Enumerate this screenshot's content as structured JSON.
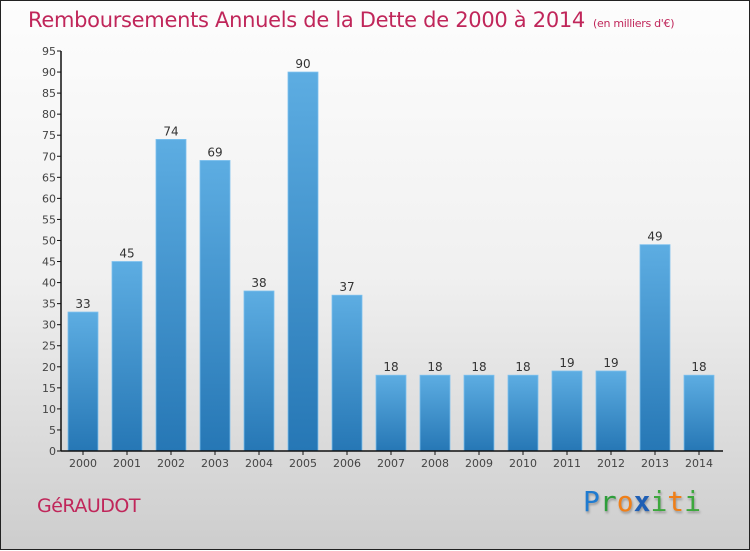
{
  "header": {
    "title": "Remboursements Annuels de la Dette de 2000 à 2014",
    "subtitle": "(en milliers d'€)"
  },
  "footer": {
    "commune": "GéRAUDOT",
    "logo": "Proxiti"
  },
  "colors": {
    "title": "#c0265a",
    "bar_top": "#5dade2",
    "bar_bottom": "#2677b5",
    "logo_p": "#1f7bd0",
    "logo_r": "#2e9e3a",
    "logo_o": "#f07f18",
    "logo_x": "#1f5fb5",
    "logo_i": "#3da83d",
    "logo_t": "#f07f18"
  },
  "chart_data": {
    "type": "bar",
    "title": "Remboursements Annuels de la Dette de 2000 à 2014",
    "xlabel": "",
    "ylabel": "",
    "categories": [
      "2000",
      "2001",
      "2002",
      "2003",
      "2004",
      "2005",
      "2006",
      "2007",
      "2008",
      "2009",
      "2010",
      "2011",
      "2012",
      "2013",
      "2014"
    ],
    "values": [
      33,
      45,
      74,
      69,
      38,
      90,
      37,
      18,
      18,
      18,
      18,
      19,
      19,
      49,
      18
    ],
    "ylim": [
      0,
      95
    ],
    "yticks": [
      0,
      5,
      10,
      15,
      20,
      25,
      30,
      35,
      40,
      45,
      50,
      55,
      60,
      65,
      70,
      75,
      80,
      85,
      90,
      95
    ],
    "grid": false
  }
}
